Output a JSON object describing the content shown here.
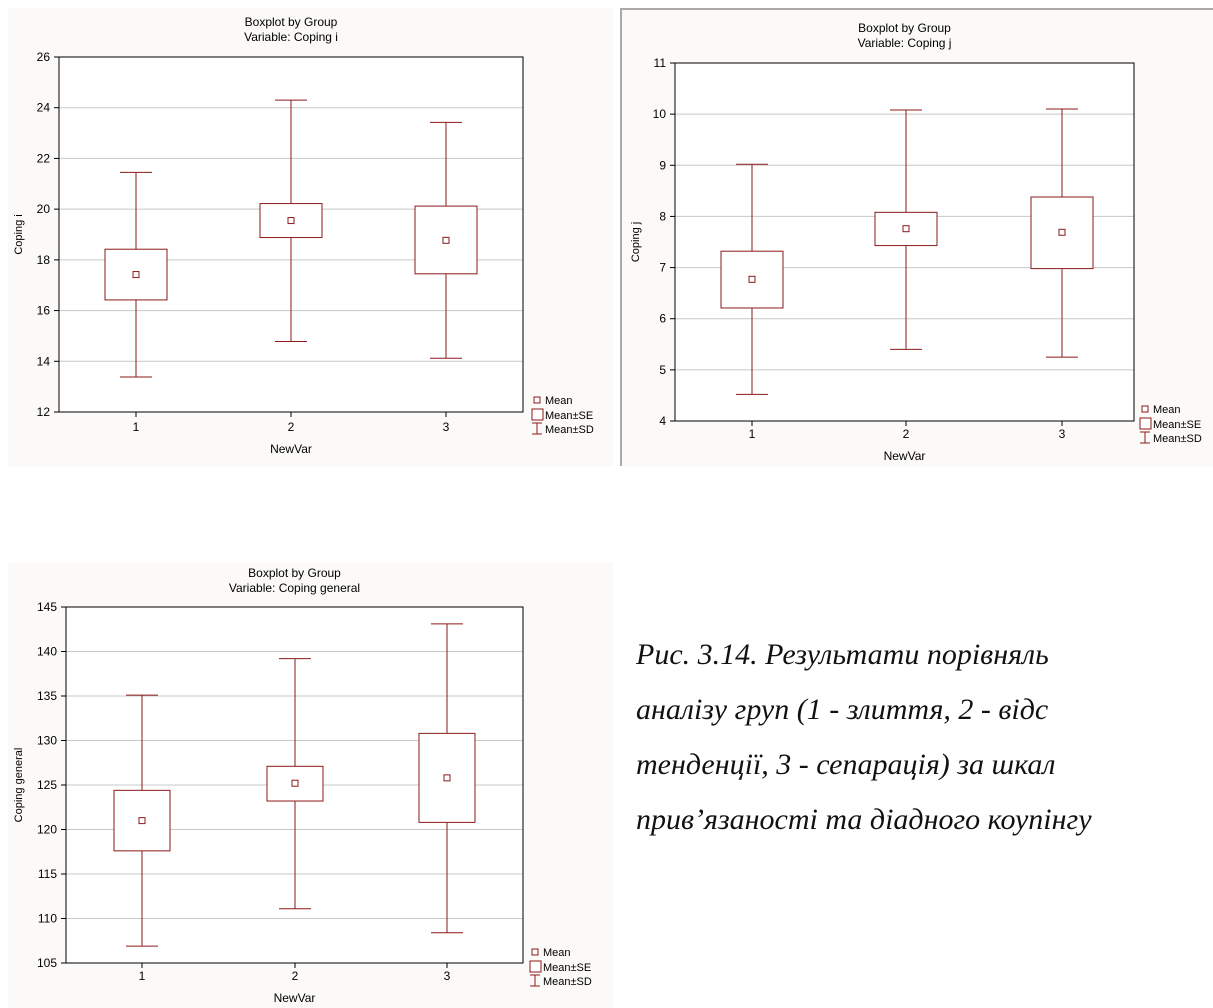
{
  "charts_panel_names": [
    "coping-i-boxplot",
    "coping-j-boxplot",
    "coping-general-boxplot"
  ],
  "colors": {
    "mark": "#8b1a1a",
    "grid": "#c8c8c8",
    "background": "#fbfaf8"
  },
  "legend": {
    "mean": "Mean",
    "se": "Mean±SE",
    "sd": "Mean±SD"
  },
  "caption": {
    "line1": "Рис. 3.14. Результати порівняль",
    "line2": "аналізу груп (1 - злиття, 2 - відс",
    "line3": "тенденції, 3 - сепарація) за шкал",
    "line4": "прив’язаності та діадного коупінгу"
  },
  "chart_data": [
    {
      "type": "boxplot",
      "title": "Boxplot by Group",
      "subtitle": "Variable: Coping i",
      "xlabel": "NewVar",
      "ylabel": "Coping i",
      "categories": [
        "1",
        "2",
        "3"
      ],
      "ylim": [
        12,
        26
      ],
      "yticks": [
        12,
        14,
        16,
        18,
        20,
        22,
        24,
        26
      ],
      "grid": true,
      "legend_position": "bottom-right",
      "series": [
        {
          "category": "1",
          "mean": 17.42,
          "se_low": 16.42,
          "se_high": 18.42,
          "sd_low": 13.38,
          "sd_high": 21.45
        },
        {
          "category": "2",
          "mean": 19.55,
          "se_low": 18.88,
          "se_high": 20.22,
          "sd_low": 14.78,
          "sd_high": 24.3
        },
        {
          "category": "3",
          "mean": 18.77,
          "se_low": 17.45,
          "se_high": 20.12,
          "sd_low": 14.12,
          "sd_high": 23.42
        }
      ]
    },
    {
      "type": "boxplot",
      "title": "Boxplot by Group",
      "subtitle": "Variable: Coping j",
      "xlabel": "NewVar",
      "ylabel": "Coping j",
      "categories": [
        "1",
        "2",
        "3"
      ],
      "ylim": [
        4,
        11
      ],
      "yticks": [
        4,
        5,
        6,
        7,
        8,
        9,
        10,
        11
      ],
      "grid": true,
      "legend_position": "bottom-right",
      "series": [
        {
          "category": "1",
          "mean": 6.77,
          "se_low": 6.21,
          "se_high": 7.32,
          "sd_low": 4.52,
          "sd_high": 9.02
        },
        {
          "category": "2",
          "mean": 7.76,
          "se_low": 7.43,
          "se_high": 8.08,
          "sd_low": 5.4,
          "sd_high": 10.08
        },
        {
          "category": "3",
          "mean": 7.69,
          "se_low": 6.98,
          "se_high": 8.38,
          "sd_low": 5.25,
          "sd_high": 10.1
        }
      ]
    },
    {
      "type": "boxplot",
      "title": "Boxplot by Group",
      "subtitle": "Variable: Coping general",
      "xlabel": "NewVar",
      "ylabel": "Coping general",
      "categories": [
        "1",
        "2",
        "3"
      ],
      "ylim": [
        105,
        145
      ],
      "yticks": [
        105,
        110,
        115,
        120,
        125,
        130,
        135,
        140,
        145
      ],
      "grid": true,
      "legend_position": "bottom-right",
      "series": [
        {
          "category": "1",
          "mean": 121.0,
          "se_low": 117.6,
          "se_high": 124.4,
          "sd_low": 106.9,
          "sd_high": 135.1
        },
        {
          "category": "2",
          "mean": 125.2,
          "se_low": 123.2,
          "se_high": 127.1,
          "sd_low": 111.1,
          "sd_high": 139.2
        },
        {
          "category": "3",
          "mean": 125.8,
          "se_low": 120.8,
          "se_high": 130.8,
          "sd_low": 108.4,
          "sd_high": 143.1
        }
      ]
    }
  ]
}
